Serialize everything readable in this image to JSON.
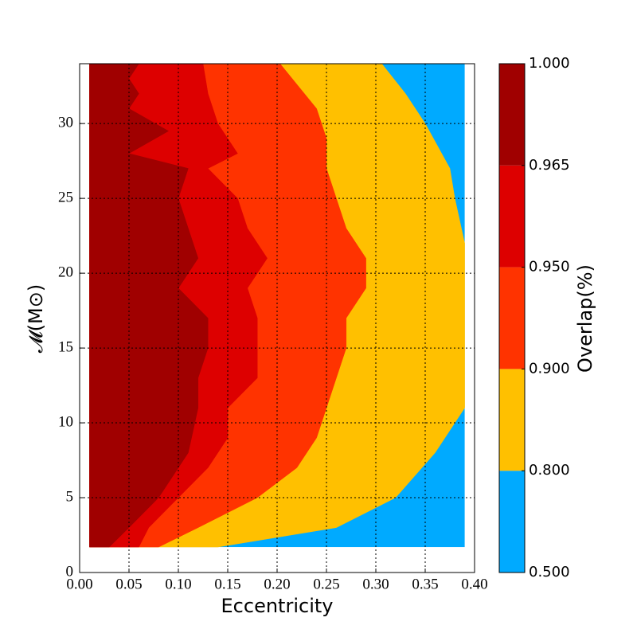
{
  "chart_data": {
    "type": "contour",
    "xlabel": "Eccentricity",
    "ylabel": "𝓜(M⊙)",
    "colorbar_label": "Overlap(%)",
    "xlim": [
      0,
      0.4
    ],
    "ylim": [
      0,
      34
    ],
    "xticks": [
      {
        "value": 0,
        "label": "0.00"
      },
      {
        "value": 0.05,
        "label": "0.05"
      },
      {
        "value": 0.1,
        "label": "0.10"
      },
      {
        "value": 0.15,
        "label": "0.15"
      },
      {
        "value": 0.2,
        "label": "0.20"
      },
      {
        "value": 0.25,
        "label": "0.25"
      },
      {
        "value": 0.3,
        "label": "0.30"
      },
      {
        "value": 0.35,
        "label": "0.35"
      },
      {
        "value": 0.4,
        "label": "0.40"
      }
    ],
    "yticks": [
      0,
      5,
      10,
      15,
      20,
      25,
      30
    ],
    "grid": true,
    "levels": [
      {
        "value": 0.5,
        "label": "0.500"
      },
      {
        "value": 0.8,
        "label": "0.800"
      },
      {
        "value": 0.9,
        "label": "0.900"
      },
      {
        "value": 0.95,
        "label": "0.950"
      },
      {
        "value": 0.965,
        "label": "0.965"
      },
      {
        "value": 1.0,
        "label": "1.000"
      }
    ],
    "colors": [
      "#00aaff",
      "#ffc000",
      "#ff3300",
      "#dd0000",
      "#a00000"
    ],
    "domain": {
      "x": [
        0.01,
        0.39
      ],
      "y": [
        1.7,
        34
      ]
    },
    "contours": [
      {
        "x": [
          0.306,
          0.33,
          0.35,
          0.375,
          0.38,
          0.39,
          0.39,
          0.36,
          0.32,
          0.26,
          0.14
        ],
        "y": [
          34,
          32,
          30,
          27,
          25,
          22,
          11,
          8,
          5,
          3,
          1.7
        ]
      },
      {
        "x": [
          0.203,
          0.24,
          0.25,
          0.25,
          0.26,
          0.27,
          0.29,
          0.29,
          0.27,
          0.27,
          0.26,
          0.25,
          0.24,
          0.22,
          0.18,
          0.12,
          0.08
        ],
        "y": [
          34,
          31,
          29,
          27,
          25,
          23,
          21,
          19,
          17,
          15,
          13,
          11,
          9,
          7,
          5,
          3,
          1.7
        ]
      },
      {
        "x": [
          0.125,
          0.13,
          0.14,
          0.16,
          0.13,
          0.16,
          0.17,
          0.19,
          0.17,
          0.18,
          0.18,
          0.18,
          0.15,
          0.15,
          0.13,
          0.1,
          0.07,
          0.06
        ],
        "y": [
          34,
          32,
          30,
          28,
          27,
          25,
          23,
          21,
          19,
          17,
          15,
          13,
          11,
          9,
          7,
          5,
          3,
          1.7
        ]
      },
      {
        "x": [
          0.06,
          0.05,
          0.06,
          0.05,
          0.09,
          0.05,
          0.11,
          0.1,
          0.11,
          0.12,
          0.1,
          0.13,
          0.13,
          0.12,
          0.12,
          0.11,
          0.08,
          0.05,
          0.03
        ],
        "y": [
          34,
          33,
          32,
          31,
          29.5,
          28,
          27,
          25,
          23,
          21,
          19,
          17,
          15,
          13,
          11,
          8,
          5,
          3,
          1.7
        ]
      }
    ]
  }
}
